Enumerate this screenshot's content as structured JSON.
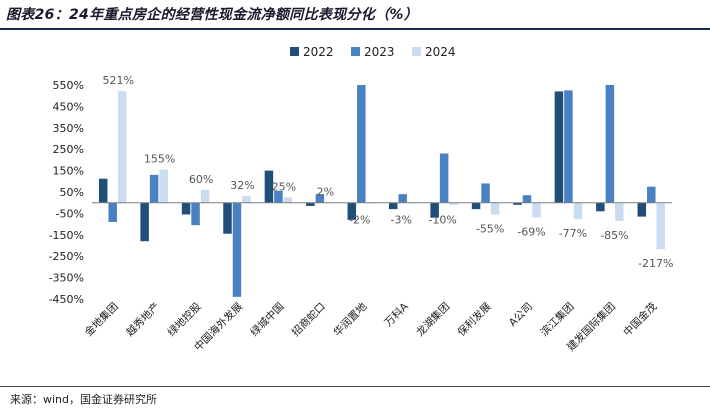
{
  "title": "图表26：24年重点房企的经营性现金流净额同比表现分化（%）",
  "source": "来源：wind，国金证券研究所",
  "colors": {
    "s2022": "#1f4e79",
    "s2023": "#4a81c2",
    "s2024": "#c9dcf0"
  },
  "chart_data": {
    "type": "bar",
    "title": "24年重点房企的经营性现金流净额同比表现分化（%）",
    "xlabel": "",
    "ylabel": "",
    "ylim": [
      -450,
      550
    ],
    "yticks": [
      550,
      450,
      350,
      250,
      150,
      50,
      -50,
      -150,
      -250,
      -350,
      -450
    ],
    "ytick_labels": [
      "550%",
      "450%",
      "350%",
      "250%",
      "150%",
      "50%",
      "-50%",
      "-150%",
      "-250%",
      "-350%",
      "-450%"
    ],
    "categories": [
      "金地集团",
      "越秀地产",
      "绿地控股",
      "中国海外发展",
      "绿城中国",
      "招商蛇口",
      "华润置地",
      "万科A",
      "龙湖集团",
      "保利发展",
      "A公司",
      "滨江集团",
      "建发国际集团",
      "中国金茂"
    ],
    "series": [
      {
        "name": "2022",
        "values": [
          112,
          -180,
          -55,
          -145,
          150,
          -15,
          -80,
          -30,
          -70,
          -30,
          -10,
          520,
          -40,
          -65
        ]
      },
      {
        "name": "2023",
        "values": [
          -90,
          130,
          -105,
          -440,
          55,
          40,
          550,
          40,
          230,
          90,
          35,
          525,
          550,
          75
        ]
      },
      {
        "name": "2024",
        "values": [
          521,
          155,
          60,
          32,
          25,
          2,
          -2,
          -3,
          -10,
          -55,
          -69,
          -77,
          -85,
          -217
        ]
      }
    ],
    "data_labels_2024": [
      "521%",
      "155%",
      "60%",
      "32%",
      "25%",
      "2%",
      "-2%",
      "-3%",
      "-10%",
      "-55%",
      "-69%",
      "-77%",
      "-85%",
      "-217%"
    ],
    "legend": [
      "2022",
      "2023",
      "2024"
    ],
    "legend_position": "top-center",
    "grid": false
  }
}
